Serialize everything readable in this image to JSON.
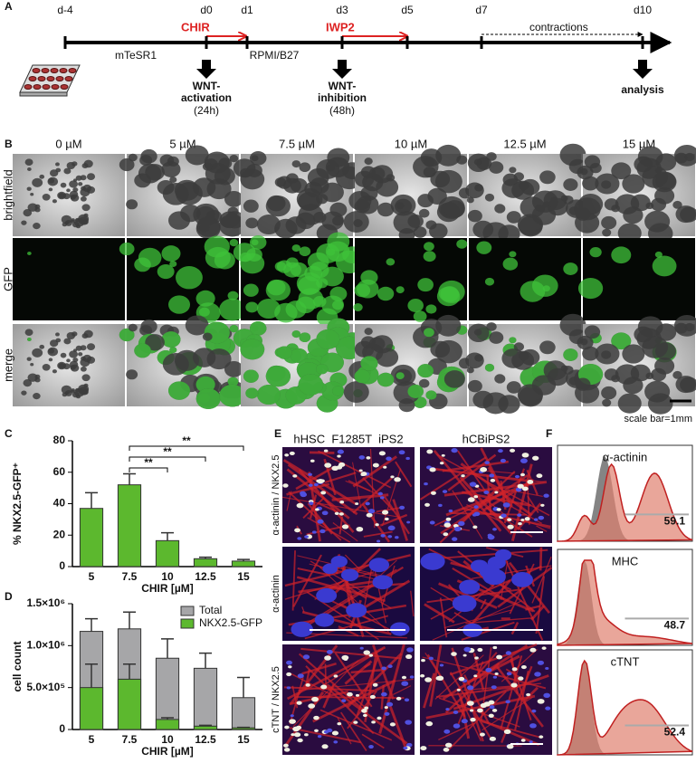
{
  "panel_letters": [
    "A",
    "B",
    "C",
    "D",
    "E",
    "F"
  ],
  "panel_a": {
    "days": [
      "d-4",
      "d0",
      "d1",
      "d3",
      "d5",
      "d7",
      "d10"
    ],
    "chir": "CHIR",
    "iwp2": "IWP2",
    "contractions": "contractions",
    "media": [
      "mTeSR1",
      "RPMI/B27"
    ],
    "activation": [
      "WNT-",
      "activation",
      "(24h)"
    ],
    "inhibition": [
      "WNT-",
      "inhibition",
      "(48h)"
    ],
    "analysis": "analysis"
  },
  "panel_b": {
    "columns": [
      "0 µM",
      "5 µM",
      "7.5 µM",
      "10 µM",
      "12.5 µM",
      "15 µM"
    ],
    "rows": [
      "brightfield",
      "GFP",
      "merge"
    ],
    "scale": "scale bar=1mm"
  },
  "chart_data": [
    {
      "type": "bar",
      "ylabel": "% NKX2.5-GFP⁺",
      "xlabel": "CHIR [µM]",
      "categories": [
        "5",
        "7.5",
        "10",
        "12.5",
        "15"
      ],
      "values": [
        37,
        52,
        16.5,
        5,
        3.5
      ],
      "errors": [
        10,
        7,
        5,
        1,
        1
      ],
      "color": "#5cb82e",
      "ylim": [
        0,
        80
      ],
      "yticks": [
        0,
        20,
        40,
        60,
        80
      ],
      "annotations": [
        "**",
        "**",
        "**"
      ]
    },
    {
      "type": "overlay_bar",
      "ylabel": "cell count",
      "xlabel": "CHIR [µM]",
      "categories": [
        "5",
        "7.5",
        "10",
        "12.5",
        "15"
      ],
      "ylim": [
        0,
        1500000
      ],
      "yticks": [
        0,
        {
          "value": 500000,
          "label": "5.0×10⁵"
        },
        {
          "value": 1000000,
          "label": "1.0×10⁶"
        },
        {
          "value": 1500000,
          "label": "1.5×10⁶"
        }
      ],
      "series": [
        {
          "name": "Total",
          "color": "#a6a6a8",
          "values": [
            1170000,
            1200000,
            850000,
            730000,
            380000
          ],
          "errors": [
            150000,
            200000,
            230000,
            180000,
            240000
          ]
        },
        {
          "name": "NKX2.5-GFP",
          "color": "#5cb82e",
          "values": [
            500000,
            600000,
            120000,
            40000,
            20000
          ],
          "errors": [
            280000,
            180000,
            20000,
            10000,
            5000
          ]
        }
      ]
    }
  ],
  "panel_e": {
    "columns": [
      "hHSC  F1285T  iPS2",
      "hCBiPS2"
    ],
    "rows": [
      "α-actinin / NKX2.5",
      "α-actinin",
      "cTNT / NKX2.5"
    ]
  },
  "panel_f": {
    "markers": [
      "α-actinin",
      "MHC",
      "cTNT"
    ],
    "percent": [
      "59.1",
      "48.7",
      "52.4"
    ]
  }
}
